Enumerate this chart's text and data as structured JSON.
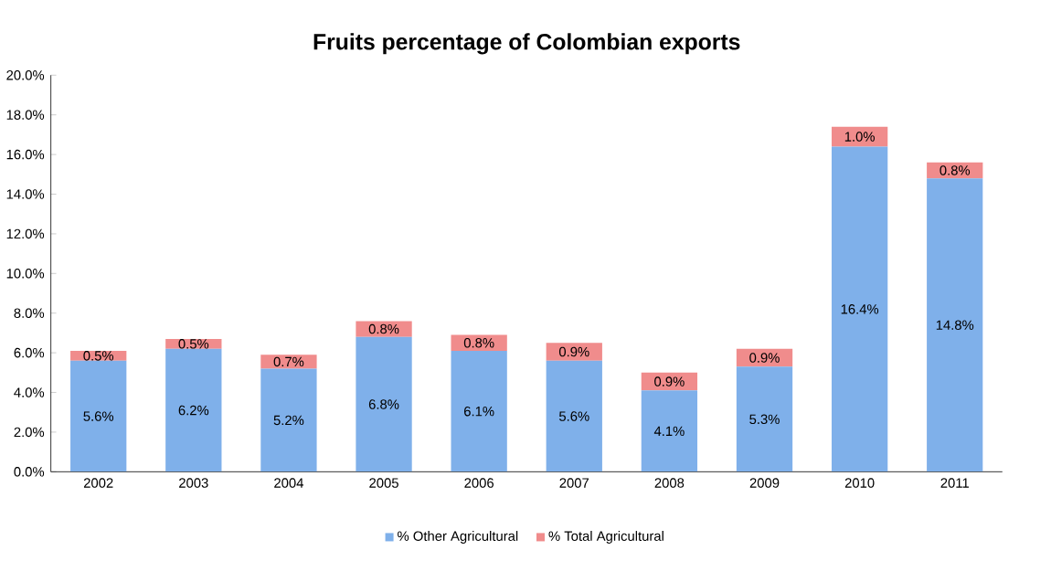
{
  "chart_data": {
    "type": "bar",
    "title": "Fruits percentage of Colombian exports",
    "stacked": true,
    "legend": "bottom",
    "categories": [
      "2002",
      "2003",
      "2004",
      "2005",
      "2006",
      "2007",
      "2008",
      "2009",
      "2010",
      "2011"
    ],
    "ylim": [
      0,
      20
    ],
    "yticks": [
      {
        "value": 0,
        "label": "0.0%"
      },
      {
        "value": 2,
        "label": "2.0%"
      },
      {
        "value": 4,
        "label": "4.0%"
      },
      {
        "value": 6,
        "label": "6.0%"
      },
      {
        "value": 8,
        "label": "8.0%"
      },
      {
        "value": 10,
        "label": "10.0%"
      },
      {
        "value": 12,
        "label": "12.0%"
      },
      {
        "value": 14,
        "label": "14.0%"
      },
      {
        "value": 16,
        "label": "16.0%"
      },
      {
        "value": 18,
        "label": "18.0%"
      },
      {
        "value": 20,
        "label": "20.0%"
      }
    ],
    "series": [
      {
        "name": "% Other Agricultural",
        "color": "#7fb0ea",
        "values": [
          5.6,
          6.2,
          5.2,
          6.8,
          6.1,
          5.6,
          4.1,
          5.3,
          16.4,
          14.8
        ],
        "value_labels": [
          "5.6%",
          "6.2%",
          "5.2%",
          "6.8%",
          "6.1%",
          "5.6%",
          "4.1%",
          "5.3%",
          "16.4%",
          "14.8%"
        ]
      },
      {
        "name": "% Total Agricultural",
        "color": "#f08c8c",
        "values": [
          0.5,
          0.5,
          0.7,
          0.8,
          0.8,
          0.9,
          0.9,
          0.9,
          1.0,
          0.8
        ],
        "value_labels": [
          "0.5%",
          "0.5%",
          "0.7%",
          "0.8%",
          "0.8%",
          "0.9%",
          "0.9%",
          "0.9%",
          "1.0%",
          "0.8%"
        ]
      }
    ]
  }
}
